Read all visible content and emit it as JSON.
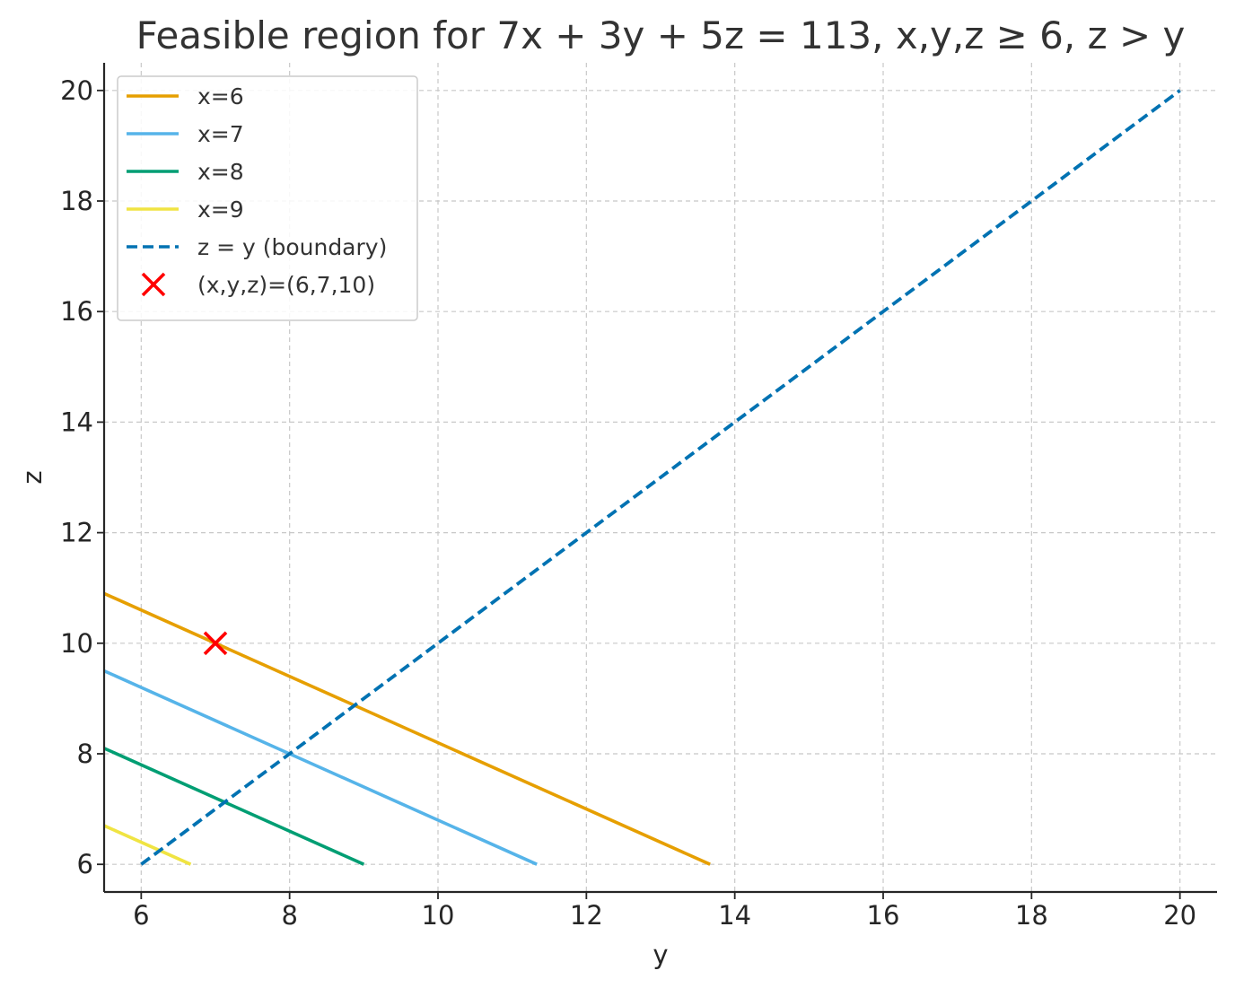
{
  "chart_data": {
    "type": "line",
    "title": "Feasible region for 7x + 3y + 5z = 113, x,y,z ≥ 6, z > y",
    "xlabel": "y",
    "ylabel": "z",
    "xlim": [
      5.5,
      20.5
    ],
    "ylim": [
      5.5,
      20.5
    ],
    "xticks": [
      6,
      8,
      10,
      12,
      14,
      16,
      18,
      20
    ],
    "yticks": [
      6,
      8,
      10,
      12,
      14,
      16,
      18,
      20
    ],
    "grid": true,
    "legend_position": "top-left",
    "series": [
      {
        "name": "x=6",
        "color": "#E69F00",
        "style": "solid",
        "points": [
          [
            5.5,
            10.9
          ],
          [
            13.667,
            6
          ]
        ]
      },
      {
        "name": "x=7",
        "color": "#56B4E9",
        "style": "solid",
        "points": [
          [
            5.5,
            9.5
          ],
          [
            11.333,
            6
          ]
        ]
      },
      {
        "name": "x=8",
        "color": "#009E73",
        "style": "solid",
        "points": [
          [
            5.5,
            8.1
          ],
          [
            9,
            6
          ]
        ]
      },
      {
        "name": "x=9",
        "color": "#F0E442",
        "style": "solid",
        "points": [
          [
            5.5,
            6.7
          ],
          [
            6.667,
            6
          ]
        ]
      },
      {
        "name": "z = y (boundary)",
        "color": "#0072B2",
        "style": "dashed",
        "points": [
          [
            6,
            6
          ],
          [
            20,
            20
          ]
        ]
      }
    ],
    "markers": [
      {
        "name": "(x,y,z)=(6,7,10)",
        "color": "#FF0000",
        "symbol": "x",
        "y": 7,
        "z": 10
      }
    ]
  }
}
